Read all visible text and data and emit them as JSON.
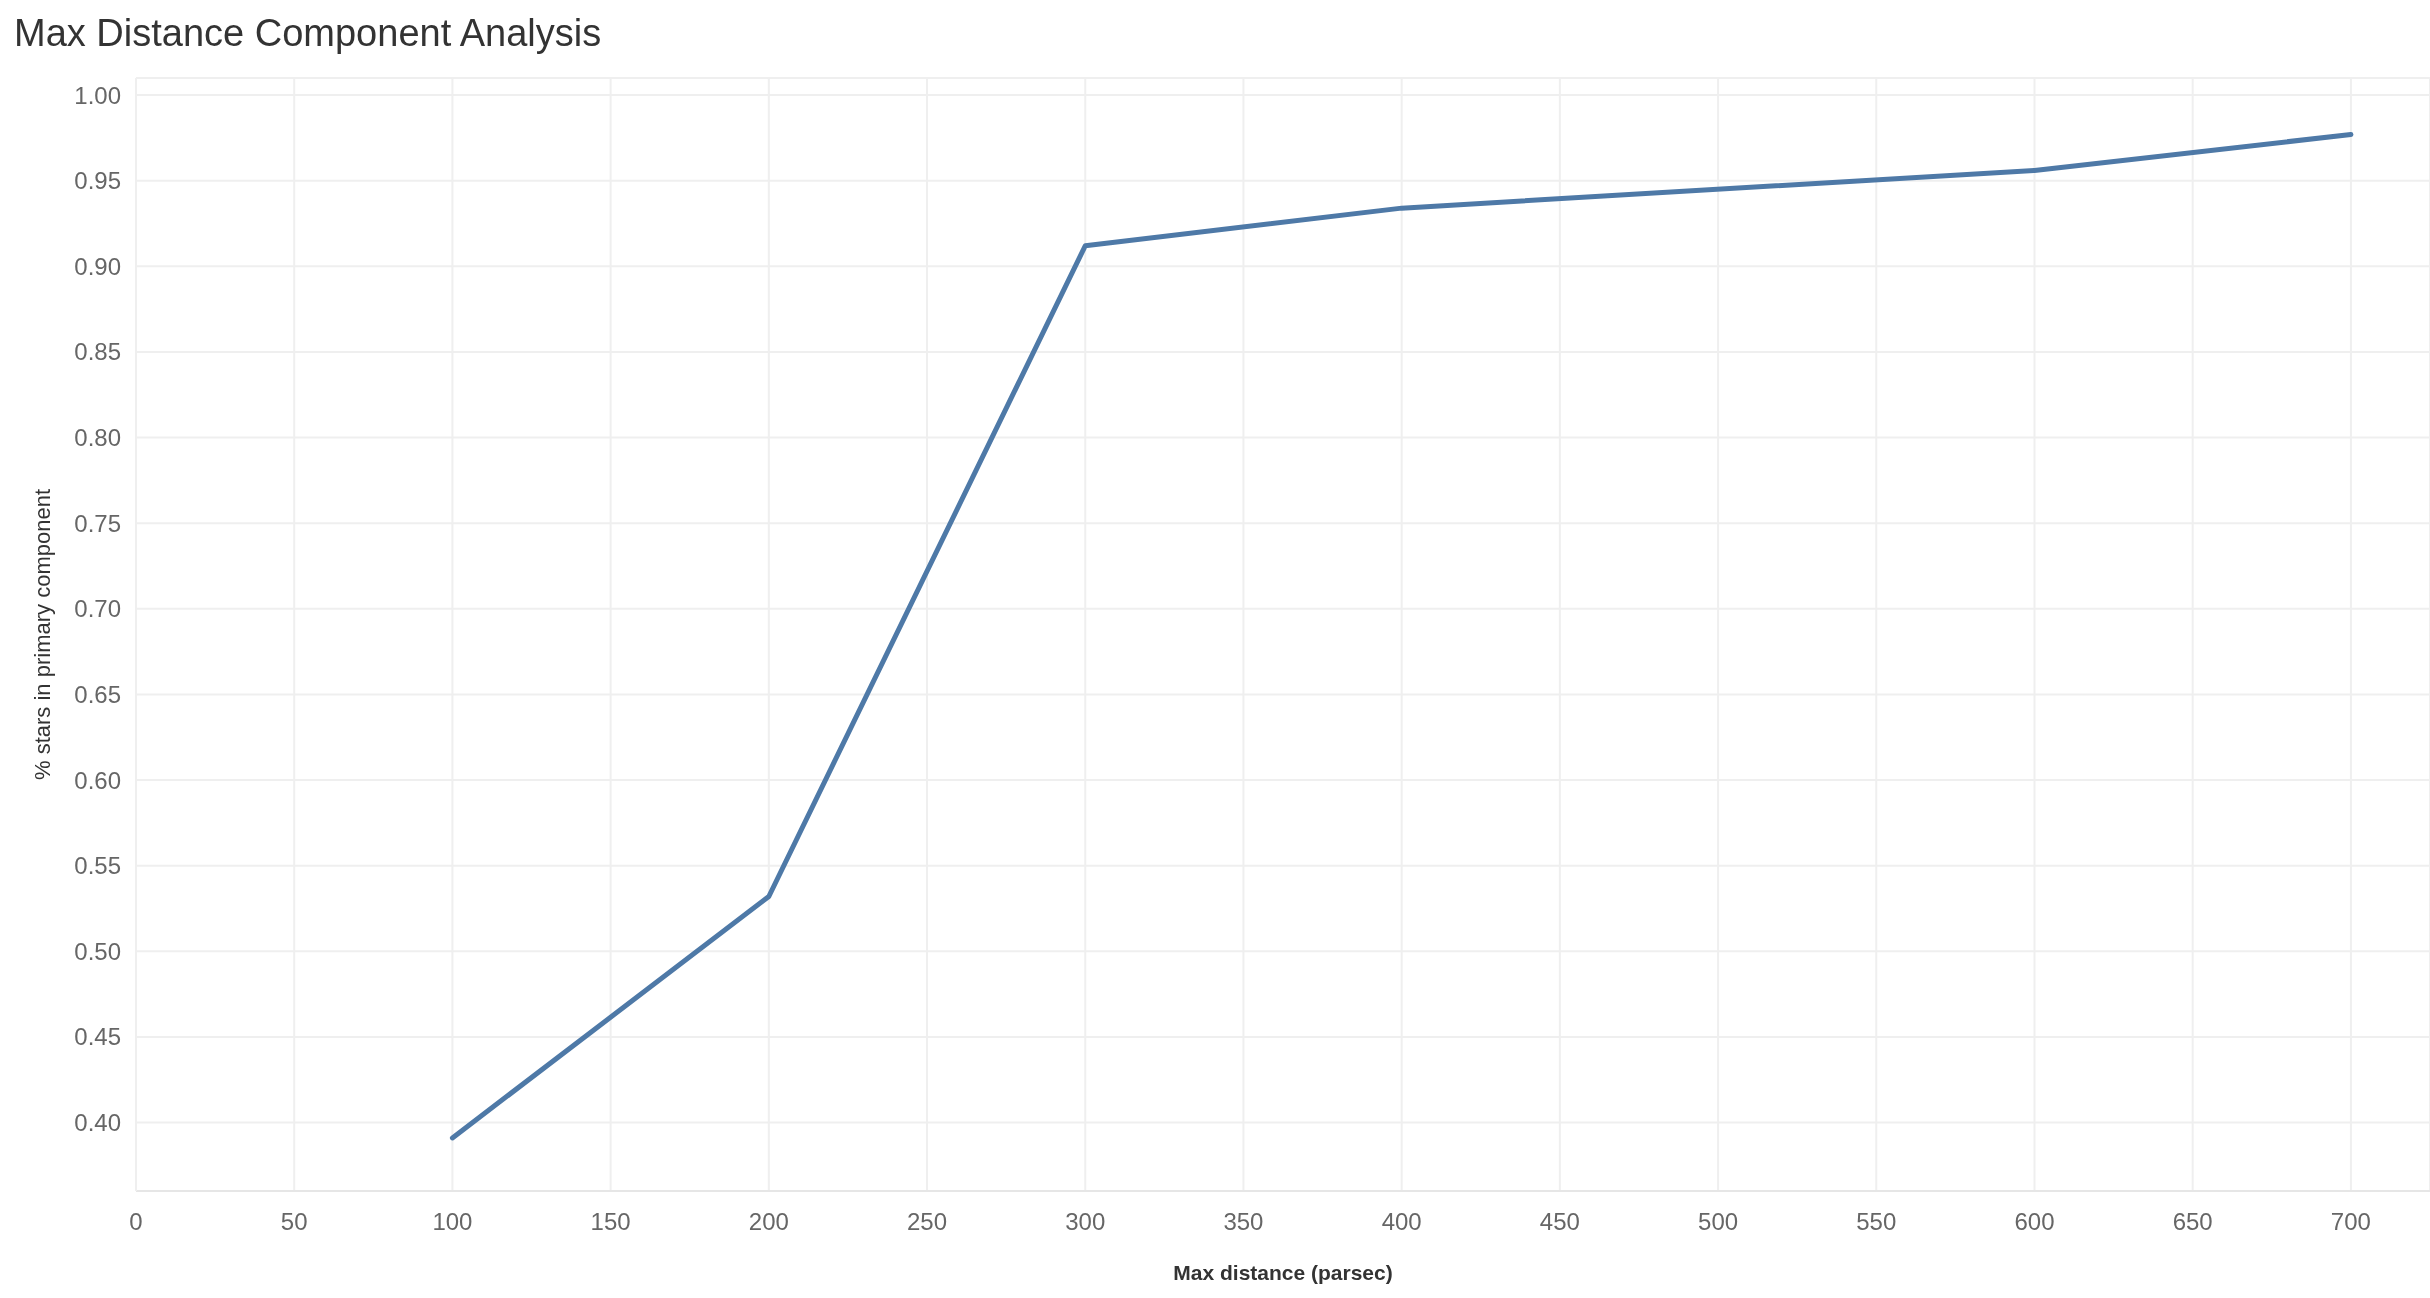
{
  "chart_data": {
    "type": "line",
    "title": "Max Distance Component Analysis",
    "xlabel": "Max distance (parsec)",
    "ylabel": "% stars in primary component",
    "x": [
      100,
      200,
      300,
      400,
      600,
      700
    ],
    "series": [
      {
        "color": "#4e79a7",
        "values": [
          0.391,
          0.532,
          0.912,
          0.934,
          0.956,
          0.977
        ]
      }
    ],
    "xlim": [
      0,
      725
    ],
    "xticks": [
      0,
      50,
      100,
      150,
      200,
      250,
      300,
      350,
      400,
      450,
      500,
      550,
      600,
      650,
      700
    ],
    "ylim": [
      0.36,
      1.01
    ],
    "yticks": [
      {
        "value": 0.4,
        "label": "0.40"
      },
      0.45,
      {
        "value": 0.5,
        "label": "0.50"
      },
      0.55,
      {
        "value": 0.6,
        "label": "0.60"
      },
      0.65,
      {
        "value": 0.7,
        "label": "0.70"
      },
      0.75,
      {
        "value": 0.8,
        "label": "0.80"
      },
      0.85,
      {
        "value": 0.9,
        "label": "0.90"
      },
      0.95,
      {
        "value": 1.0,
        "label": "1.00"
      }
    ],
    "grid": true,
    "line_style": "solid"
  }
}
